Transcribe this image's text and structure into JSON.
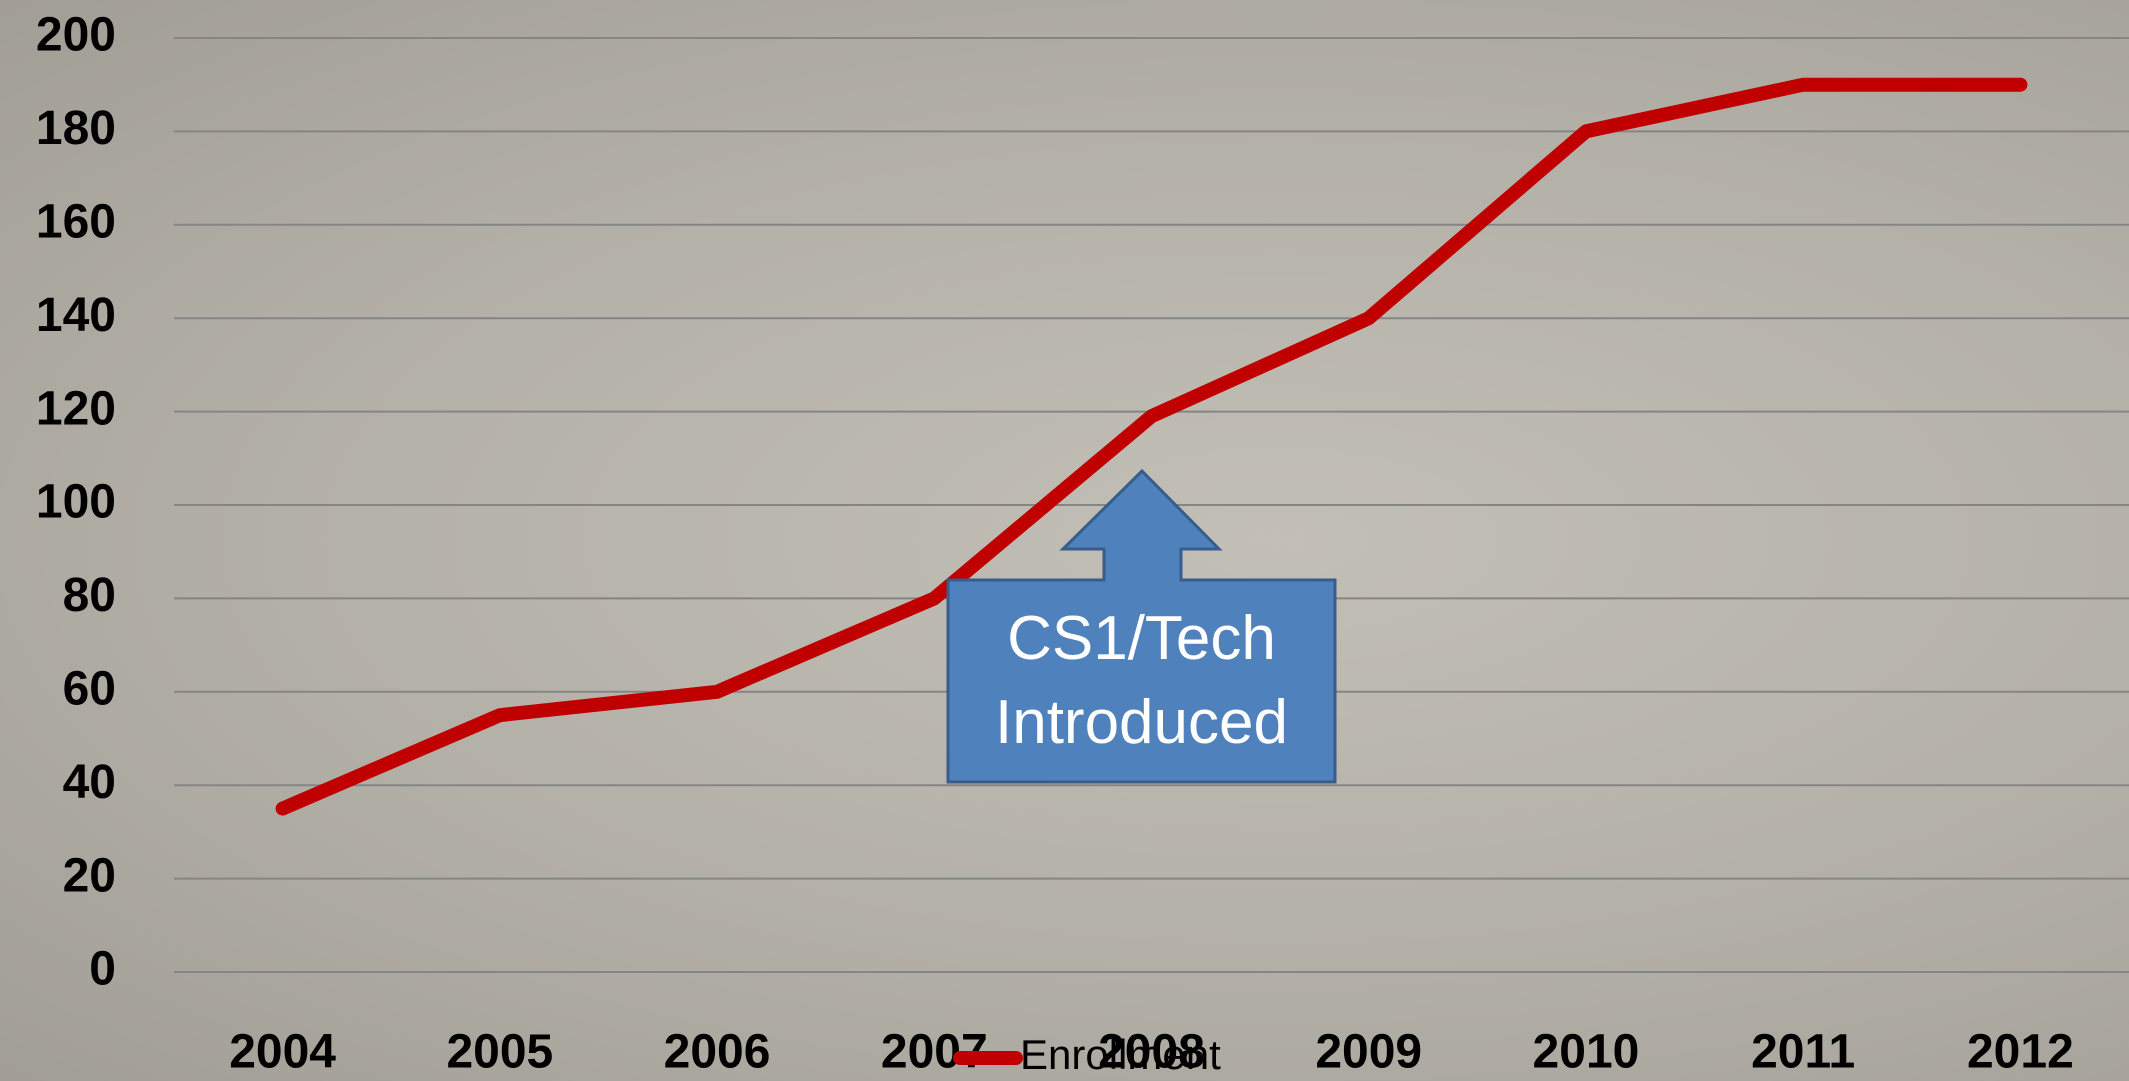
{
  "chart_data": {
    "type": "line",
    "categories": [
      "2004",
      "2005",
      "2006",
      "2007",
      "2008",
      "2009",
      "2010",
      "2011",
      "2012"
    ],
    "series": [
      {
        "name": "Enrollment",
        "color": "#c00000",
        "values": [
          35,
          55,
          60,
          80,
          119,
          140,
          180,
          190,
          190
        ]
      }
    ],
    "ylim": [
      0,
      200
    ],
    "yticks": [
      0,
      20,
      40,
      60,
      80,
      100,
      120,
      140,
      160,
      180,
      200
    ],
    "grid": true,
    "legend": "bottom",
    "annotation": "CS1/Tech Introduced"
  }
}
